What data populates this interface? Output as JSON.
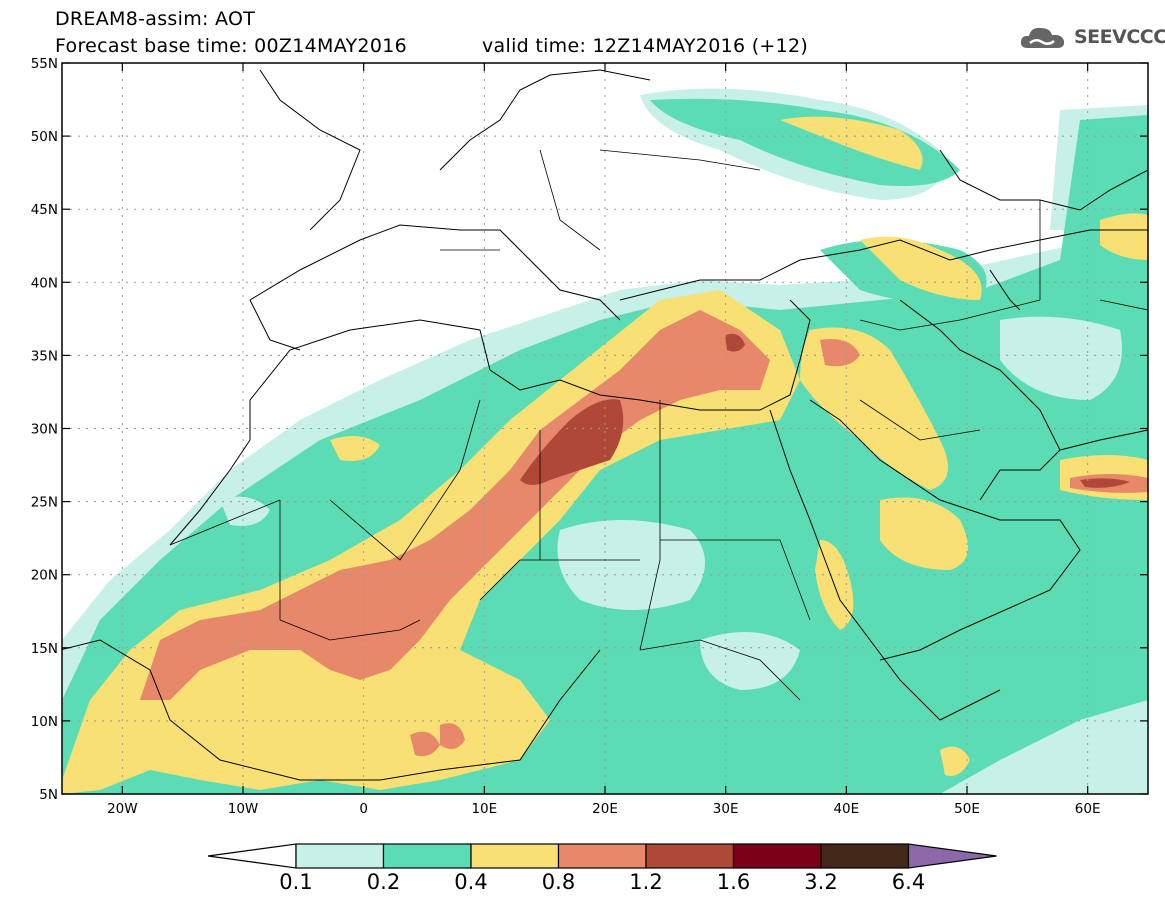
{
  "header": {
    "line1": "DREAM8-assim: AOT",
    "line2": "Forecast base time: 00Z14MAY2016",
    "valid": "valid time: 12Z14MAY2016 (+12)"
  },
  "logo": {
    "icon": "cloud-icon",
    "text": "SEEVCCC"
  },
  "map": {
    "lat_labels": [
      "55N",
      "50N",
      "45N",
      "40N",
      "35N",
      "30N",
      "25N",
      "20N",
      "15N",
      "10N",
      "5N"
    ],
    "lon_labels": [
      "20W",
      "10W",
      "0",
      "10E",
      "20E",
      "30E",
      "40E",
      "50E",
      "60E"
    ],
    "lat_range": [
      5,
      55
    ],
    "lon_range": [
      -25,
      65
    ],
    "grid": "dotted"
  },
  "colorbar": {
    "labels": [
      "0.1",
      "0.2",
      "0.4",
      "0.8",
      "1.2",
      "1.6",
      "3.2",
      "6.4"
    ],
    "colors": [
      "#c6f0e8",
      "#5cdcb4",
      "#f8e074",
      "#e8886a",
      "#b04838",
      "#7c0018",
      "#44281a",
      "#8c68a8"
    ],
    "lower_extend": "#ffffff"
  }
}
